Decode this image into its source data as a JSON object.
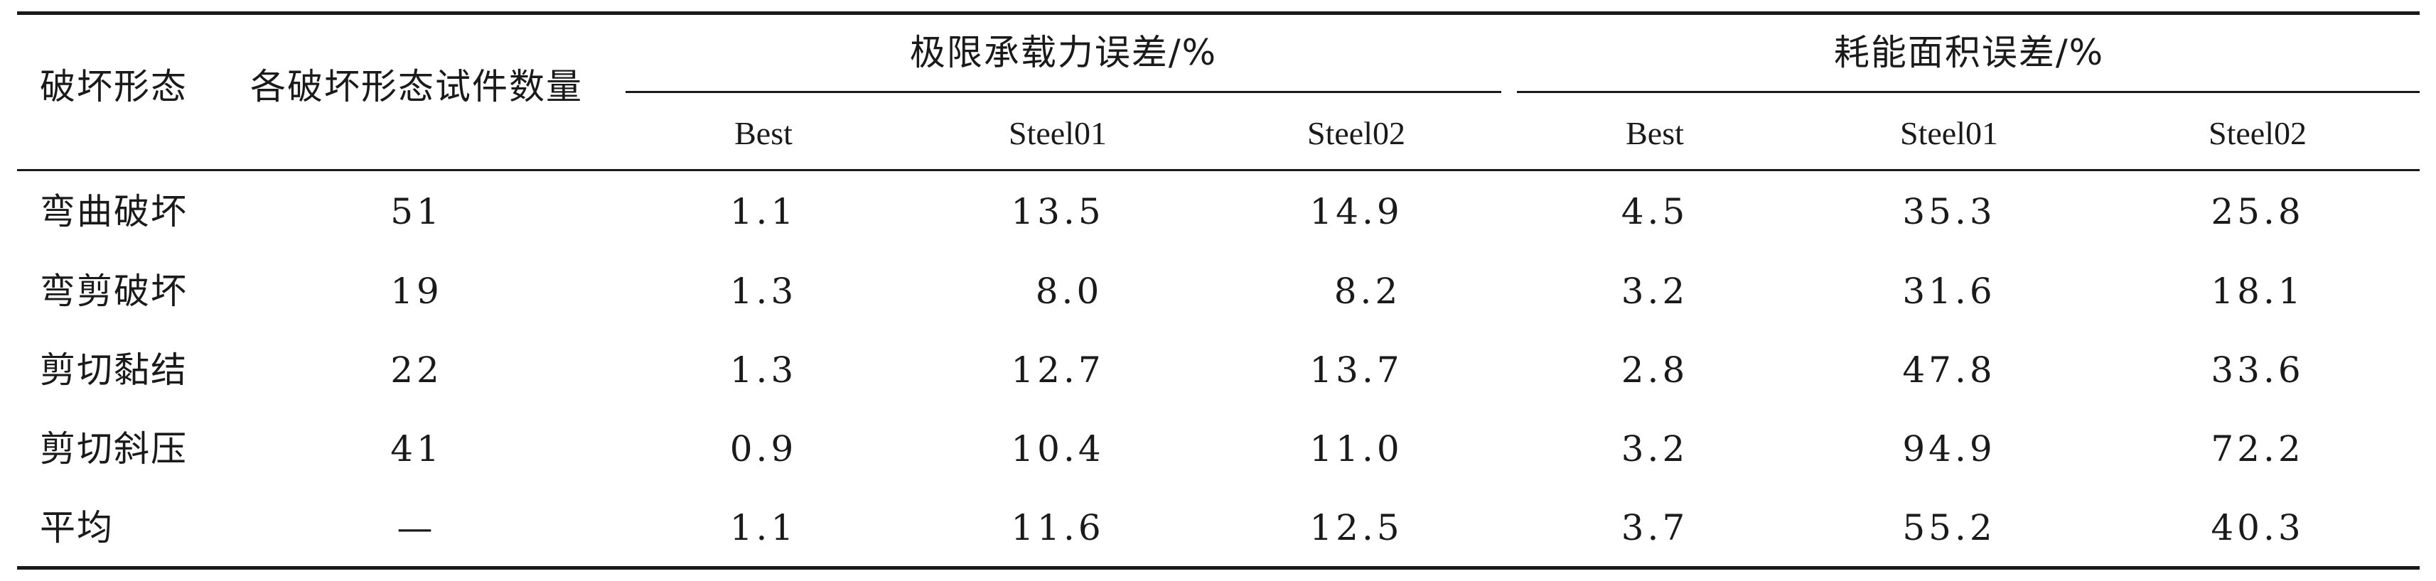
{
  "table": {
    "header": {
      "col_failure_mode": "破坏形态",
      "col_specimen_count": "各破坏形态试件数量",
      "group_ultimate": "极限承载力误差/%",
      "group_energy": "耗能面积误差/%",
      "sub_columns": [
        "Best",
        "Steel01",
        "Steel02",
        "Best",
        "Steel01",
        "Steel02"
      ]
    },
    "rows": [
      {
        "mode": "弯曲破坏",
        "count": "51",
        "values": [
          "1.1",
          "13.5",
          "14.9",
          "4.5",
          "35.3",
          "25.8"
        ]
      },
      {
        "mode": "弯剪破坏",
        "count": "19",
        "values": [
          "1.3",
          "8.0",
          "8.2",
          "3.2",
          "31.6",
          "18.1"
        ]
      },
      {
        "mode": "剪切黏结",
        "count": "22",
        "values": [
          "1.3",
          "12.7",
          "13.7",
          "2.8",
          "47.8",
          "33.6"
        ]
      },
      {
        "mode": "剪切斜压",
        "count": "41",
        "values": [
          "0.9",
          "10.4",
          "11.0",
          "3.2",
          "94.9",
          "72.2"
        ]
      },
      {
        "mode": "平均",
        "count": "—",
        "values": [
          "1.1",
          "11.6",
          "12.5",
          "3.7",
          "55.2",
          "40.3"
        ]
      }
    ]
  }
}
